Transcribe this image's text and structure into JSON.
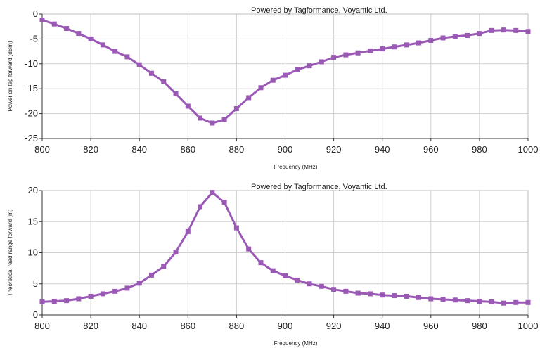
{
  "chart_data": [
    {
      "type": "line",
      "annotation": "Powered by Tagformance, Voyantic Ltd.",
      "xlabel": "Frequency (MHz)",
      "ylabel": "Power on tag forward (dBm)",
      "xlim": [
        800,
        1000
      ],
      "ylim": [
        -25,
        0
      ],
      "xticks": [
        800,
        820,
        840,
        860,
        880,
        900,
        920,
        940,
        960,
        980,
        1000
      ],
      "yticks": [
        0,
        -5,
        -10,
        -15,
        -20,
        -25
      ],
      "grid": true,
      "color": "#9b59b6",
      "x": [
        800,
        805,
        810,
        815,
        820,
        825,
        830,
        835,
        840,
        845,
        850,
        855,
        860,
        865,
        870,
        875,
        880,
        885,
        890,
        895,
        900,
        905,
        910,
        915,
        920,
        925,
        930,
        935,
        940,
        945,
        950,
        955,
        960,
        965,
        970,
        975,
        980,
        985,
        990,
        995,
        1000
      ],
      "y": [
        -1.2,
        -2.0,
        -2.9,
        -3.9,
        -5.0,
        -6.2,
        -7.5,
        -8.6,
        -10.2,
        -11.9,
        -13.6,
        -16.0,
        -18.5,
        -20.9,
        -21.9,
        -21.2,
        -19.0,
        -16.8,
        -14.8,
        -13.3,
        -12.3,
        -11.2,
        -10.4,
        -9.6,
        -8.7,
        -8.2,
        -7.8,
        -7.4,
        -7.0,
        -6.6,
        -6.2,
        -5.8,
        -5.3,
        -4.8,
        -4.5,
        -4.3,
        -3.9,
        -3.3,
        -3.2,
        -3.3,
        -3.5
      ]
    },
    {
      "type": "line",
      "annotation": "Powered by Tagformance, Voyantic Ltd.",
      "xlabel": "Frequency (MHz)",
      "ylabel": "Theoretical read range forward (m)",
      "xlim": [
        800,
        1000
      ],
      "ylim": [
        0,
        20
      ],
      "xticks": [
        800,
        820,
        840,
        860,
        880,
        900,
        920,
        940,
        960,
        980,
        1000
      ],
      "yticks": [
        20,
        15,
        10,
        5,
        0
      ],
      "grid": true,
      "color": "#9b59b6",
      "x": [
        800,
        805,
        810,
        815,
        820,
        825,
        830,
        835,
        840,
        845,
        850,
        855,
        860,
        865,
        870,
        875,
        880,
        885,
        890,
        895,
        900,
        905,
        910,
        915,
        920,
        925,
        930,
        935,
        940,
        945,
        950,
        955,
        960,
        965,
        970,
        975,
        980,
        985,
        990,
        995,
        1000
      ],
      "y": [
        2.1,
        2.2,
        2.3,
        2.6,
        3.0,
        3.4,
        3.8,
        4.3,
        5.1,
        6.4,
        7.8,
        10.1,
        13.4,
        17.4,
        19.7,
        18.1,
        14.0,
        10.6,
        8.4,
        7.1,
        6.3,
        5.6,
        5.0,
        4.6,
        4.1,
        3.8,
        3.5,
        3.4,
        3.2,
        3.1,
        3.0,
        2.8,
        2.6,
        2.5,
        2.4,
        2.3,
        2.2,
        2.1,
        1.9,
        2.0,
        2.0
      ]
    }
  ]
}
